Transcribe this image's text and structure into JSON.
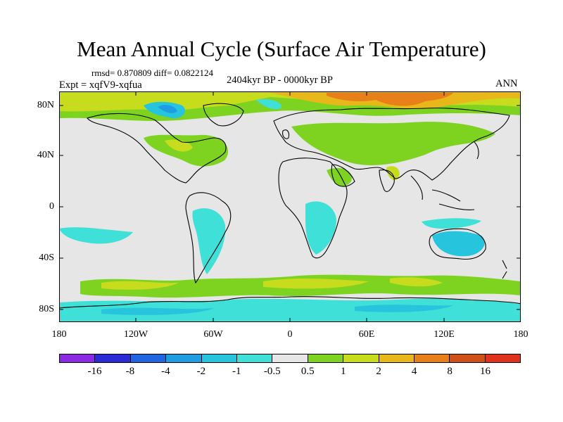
{
  "title": "Mean Annual Cycle (Surface Air Temperature)",
  "stats": "rmsd= 0.870809 diff= 0.0822124",
  "experiment": "Expt = xqfV9-xqfua",
  "period": "2404kyr BP - 0000kyr BP",
  "season": "ANN",
  "y_axis_labels": [
    "80N",
    "40N",
    "0",
    "40S",
    "80S"
  ],
  "x_axis_labels": [
    "180",
    "120W",
    "60W",
    "0",
    "60E",
    "120E",
    "180"
  ],
  "colorbar": {
    "colors": [
      "#8a2be2",
      "#2b2bd6",
      "#1f66e0",
      "#1e9ee0",
      "#27c4de",
      "#3ee0d8",
      "#e6e6e6",
      "#7ed321",
      "#c8dc1e",
      "#e8b81a",
      "#e8801a",
      "#d0501a",
      "#e0321a"
    ],
    "labels": [
      "-16",
      "-8",
      "-4",
      "-2",
      "-1",
      "-0.5",
      "0.5",
      "1",
      "2",
      "4",
      "8",
      "16"
    ]
  },
  "legend_colors": {
    "neutral": "#e6e6e6",
    "warm_light": "#7ed321",
    "warm_mid": "#c8dc1e",
    "warm_high": "#e8b81a",
    "warm_strong": "#e8801a",
    "cool_light": "#3ee0d8",
    "cool_mid": "#27c4de",
    "cool_strong": "#1e9ee0"
  }
}
